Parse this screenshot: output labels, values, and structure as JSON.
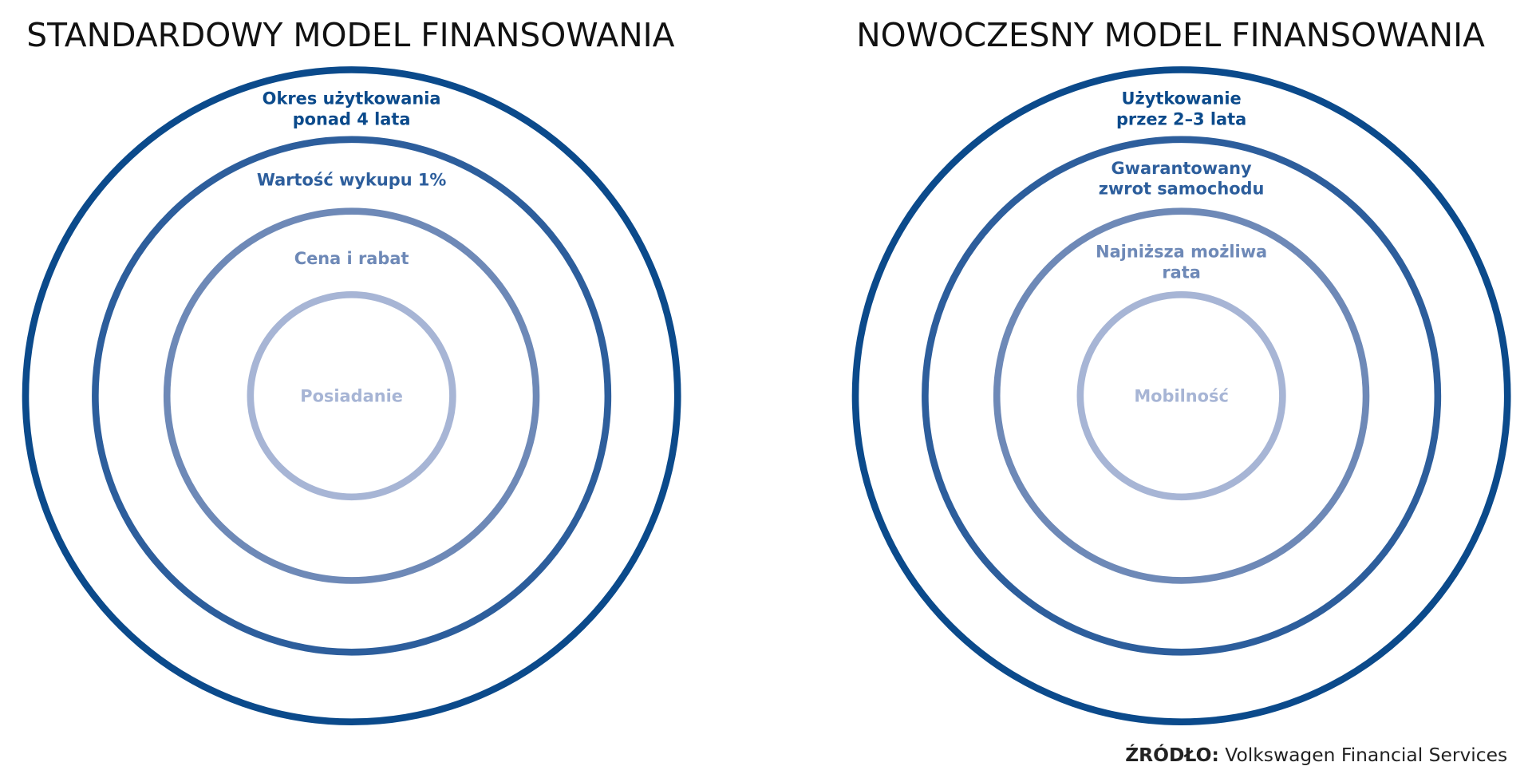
{
  "left": {
    "title": "STANDARDOWY MODEL FINANSOWANIA",
    "rings": [
      {
        "lines": [
          "Okres użytkowania",
          "ponad 4 lata"
        ]
      },
      {
        "lines": [
          "Wartość wykupu 1%"
        ]
      },
      {
        "lines": [
          "Cena i rabat"
        ]
      },
      {
        "lines": [
          "Posiadanie"
        ]
      }
    ]
  },
  "right": {
    "title": "NOWOCZESNY MODEL FINANSOWANIA",
    "rings": [
      {
        "lines": [
          "Użytkowanie",
          "przez 2–3 lata"
        ]
      },
      {
        "lines": [
          "Gwarantowany",
          "zwrot samochodu"
        ]
      },
      {
        "lines": [
          "Najniższa możliwa",
          "rata"
        ]
      },
      {
        "lines": [
          "Mobilność"
        ]
      }
    ]
  },
  "source": {
    "label": "ŹRÓDŁO:",
    "text": "Volkswagen Financial Services"
  }
}
